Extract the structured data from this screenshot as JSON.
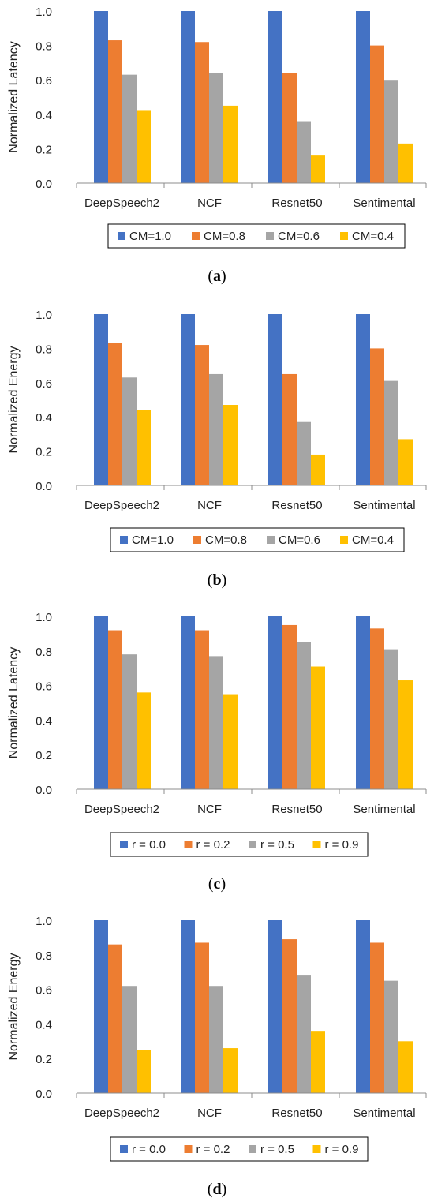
{
  "figure": {
    "panel_labels": [
      "a",
      "b",
      "c",
      "d"
    ]
  },
  "chart_data": [
    {
      "type": "bar",
      "title": "",
      "xlabel": "",
      "ylabel": "Normalized Latency",
      "ylim": [
        0,
        1.0
      ],
      "yticks": [
        "0.0",
        "0.2",
        "0.4",
        "0.6",
        "0.8",
        "1.0"
      ],
      "grid": false,
      "legend_position": "bottom",
      "categories": [
        "DeepSpeech2",
        "NCF",
        "Resnet50",
        "Sentimental"
      ],
      "series": [
        {
          "name": "CM=1.0",
          "color": "#4472C4",
          "values": [
            1.0,
            1.0,
            1.0,
            1.0
          ]
        },
        {
          "name": "CM=0.8",
          "color": "#ED7D31",
          "values": [
            0.83,
            0.82,
            0.64,
            0.8
          ]
        },
        {
          "name": "CM=0.6",
          "color": "#A5A5A5",
          "values": [
            0.63,
            0.64,
            0.36,
            0.6
          ]
        },
        {
          "name": "CM=0.4",
          "color": "#FFC000",
          "values": [
            0.42,
            0.45,
            0.16,
            0.23
          ]
        }
      ]
    },
    {
      "type": "bar",
      "title": "",
      "xlabel": "",
      "ylabel": "Normalized Energy",
      "ylim": [
        0,
        1.0
      ],
      "yticks": [
        "0.0",
        "0.2",
        "0.4",
        "0.6",
        "0.8",
        "1.0"
      ],
      "grid": false,
      "legend_position": "bottom",
      "categories": [
        "DeepSpeech2",
        "NCF",
        "Resnet50",
        "Sentimental"
      ],
      "series": [
        {
          "name": "CM=1.0",
          "color": "#4472C4",
          "values": [
            1.0,
            1.0,
            1.0,
            1.0
          ]
        },
        {
          "name": "CM=0.8",
          "color": "#ED7D31",
          "values": [
            0.83,
            0.82,
            0.65,
            0.8
          ]
        },
        {
          "name": "CM=0.6",
          "color": "#A5A5A5",
          "values": [
            0.63,
            0.65,
            0.37,
            0.61
          ]
        },
        {
          "name": "CM=0.4",
          "color": "#FFC000",
          "values": [
            0.44,
            0.47,
            0.18,
            0.27
          ]
        }
      ]
    },
    {
      "type": "bar",
      "title": "",
      "xlabel": "",
      "ylabel": "Normalized Latency",
      "ylim": [
        0,
        1.0
      ],
      "yticks": [
        "0.0",
        "0.2",
        "0.4",
        "0.6",
        "0.8",
        "1.0"
      ],
      "grid": false,
      "legend_position": "bottom",
      "categories": [
        "DeepSpeech2",
        "NCF",
        "Resnet50",
        "Sentimental"
      ],
      "series": [
        {
          "name": "r = 0.0",
          "color": "#4472C4",
          "values": [
            1.0,
            1.0,
            1.0,
            1.0
          ]
        },
        {
          "name": "r = 0.2",
          "color": "#ED7D31",
          "values": [
            0.92,
            0.92,
            0.95,
            0.93
          ]
        },
        {
          "name": "r = 0.5",
          "color": "#A5A5A5",
          "values": [
            0.78,
            0.77,
            0.85,
            0.81
          ]
        },
        {
          "name": "r = 0.9",
          "color": "#FFC000",
          "values": [
            0.56,
            0.55,
            0.71,
            0.63
          ]
        }
      ]
    },
    {
      "type": "bar",
      "title": "",
      "xlabel": "",
      "ylabel": "Normalized Energy",
      "ylim": [
        0,
        1.0
      ],
      "yticks": [
        "0.0",
        "0.2",
        "0.4",
        "0.6",
        "0.8",
        "1.0"
      ],
      "grid": false,
      "legend_position": "bottom",
      "categories": [
        "DeepSpeech2",
        "NCF",
        "Resnet50",
        "Sentimental"
      ],
      "series": [
        {
          "name": "r = 0.0",
          "color": "#4472C4",
          "values": [
            1.0,
            1.0,
            1.0,
            1.0
          ]
        },
        {
          "name": "r = 0.2",
          "color": "#ED7D31",
          "values": [
            0.86,
            0.87,
            0.89,
            0.87
          ]
        },
        {
          "name": "r = 0.5",
          "color": "#A5A5A5",
          "values": [
            0.62,
            0.62,
            0.68,
            0.65
          ]
        },
        {
          "name": "r = 0.9",
          "color": "#FFC000",
          "values": [
            0.25,
            0.26,
            0.36,
            0.3
          ]
        }
      ]
    }
  ]
}
